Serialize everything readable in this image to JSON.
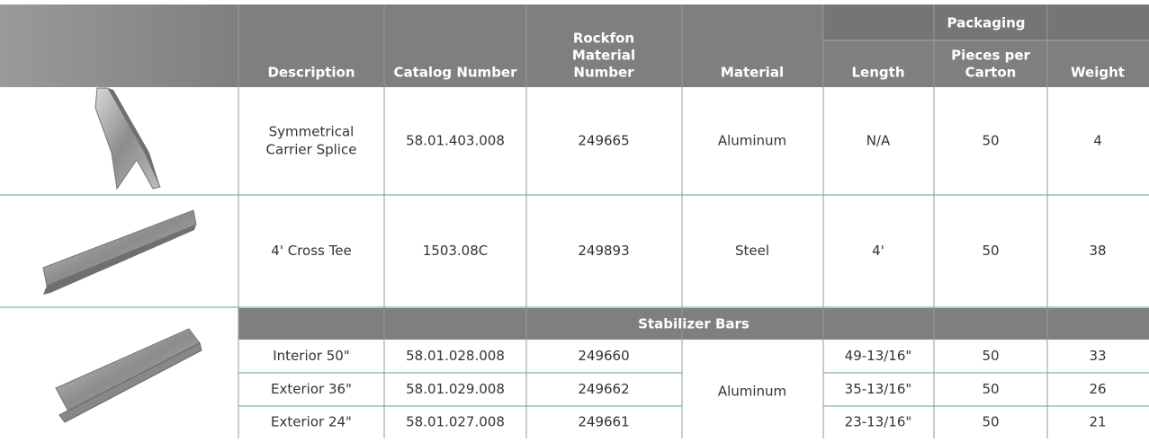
{
  "table": {
    "headers": {
      "description": "Description",
      "catalog_number": "Catalog Number",
      "rockfon_material_number": [
        "Rockfon",
        "Material",
        "Number"
      ],
      "material": "Material",
      "packaging": "Packaging",
      "length": "Length",
      "pieces_per_carton": [
        "Pieces per",
        "Carton"
      ],
      "weight": "Weight"
    },
    "rows": [
      {
        "description": [
          "Symmetrical",
          "Carrier Splice"
        ],
        "catalog_number": "58.01.403.008",
        "rockfon_material_number": "249665",
        "material": "Aluminum",
        "length": "N/A",
        "pieces_per_carton": "50",
        "weight": "4"
      },
      {
        "description": [
          "4' Cross Tee"
        ],
        "catalog_number": "1503.08C",
        "rockfon_material_number": "249893",
        "material": "Steel",
        "length": "4'",
        "pieces_per_carton": "50",
        "weight": "38"
      }
    ],
    "stabilizer": {
      "title": "Stabilizer Bars",
      "material": "Aluminum",
      "rows": [
        {
          "description": "Interior 50\"",
          "catalog_number": "58.01.028.008",
          "rockfon_material_number": "249660",
          "length": "49-13/16\"",
          "pieces_per_carton": "50",
          "weight": "33"
        },
        {
          "description": "Exterior 36\"",
          "catalog_number": "58.01.029.008",
          "rockfon_material_number": "249662",
          "length": "35-13/16\"",
          "pieces_per_carton": "50",
          "weight": "26"
        },
        {
          "description": "Exterior 24\"",
          "catalog_number": "58.01.027.008",
          "rockfon_material_number": "249661",
          "length": "23-13/16\"",
          "pieces_per_carton": "50",
          "weight": "21"
        }
      ]
    }
  }
}
